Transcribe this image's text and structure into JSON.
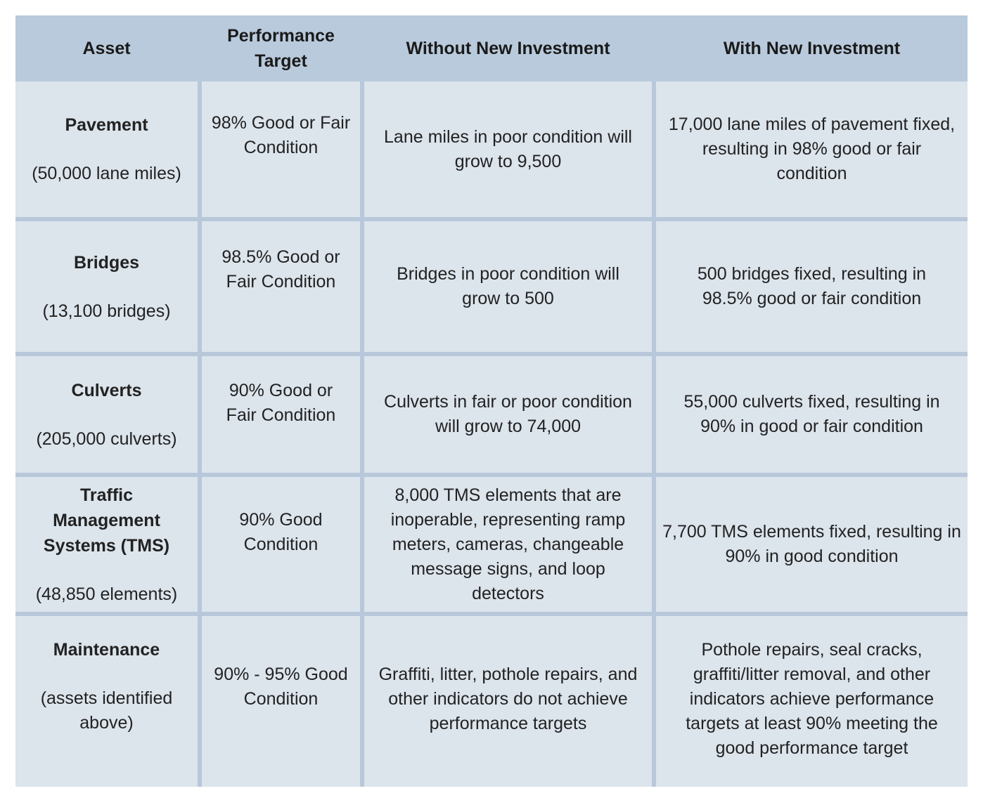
{
  "headers": {
    "asset": "Asset",
    "target": "Performance Target",
    "without": "Without New Investment",
    "with": "With New Investment"
  },
  "rows": [
    {
      "asset": "Pavement",
      "sub": "(50,000 lane miles)",
      "target": "98% Good or Fair Condition",
      "without": "Lane miles in poor condition will grow to 9,500",
      "with": "17,000 lane miles of pavement fixed, resulting in 98% good or fair condition"
    },
    {
      "asset": "Bridges",
      "sub": "(13,100 bridges)",
      "target": "98.5% Good or Fair Condition",
      "without": "Bridges in poor condition will grow to 500",
      "with": "500 bridges fixed, resulting in 98.5% good or fair condition"
    },
    {
      "asset": "Culverts",
      "sub": "(205,000 culverts)",
      "target": "90% Good or Fair Condition",
      "without": "Culverts in fair or poor condition will grow to 74,000",
      "with": "55,000 culverts fixed, resulting in 90% in good or fair condition"
    },
    {
      "asset": "Traffic Management Systems (TMS)",
      "sub": "(48,850 elements)",
      "target": "90% Good Condition",
      "without": "8,000 TMS elements that are inoperable, representing ramp meters, cameras, changeable message signs, and loop detectors",
      "with": "7,700 TMS elements fixed, resulting in 90% in good condition"
    },
    {
      "asset": "Maintenance",
      "sub": "(assets identified above)",
      "target": "90% - 95% Good Condition",
      "without": "Graffiti, litter, pothole repairs, and other indicators do not achieve performance targets",
      "with": "Pothole repairs, seal cracks, graffiti/litter removal, and other indicators achieve performance targets at least 90% meeting the good performance target"
    }
  ]
}
